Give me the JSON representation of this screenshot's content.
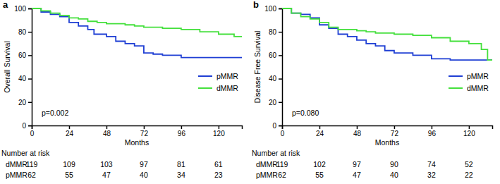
{
  "chart_data": [
    {
      "type": "line",
      "title": "a",
      "xlabel": "Months",
      "ylabel": "Overall Survival",
      "annotations": [
        "p=0.002"
      ],
      "xlim": [
        0,
        135
      ],
      "xticks": [
        0,
        24,
        48,
        72,
        96,
        120
      ],
      "ylim": [
        0,
        100
      ],
      "yticks": [
        0,
        20,
        40,
        60,
        80,
        100
      ],
      "legend": "lower right",
      "line_style": "step",
      "series": [
        {
          "name": "pMMR",
          "color": "#1f3fd4",
          "x": [
            0,
            6,
            12,
            18,
            24,
            30,
            36,
            40,
            48,
            54,
            60,
            66,
            72,
            78,
            84,
            96,
            135
          ],
          "values": [
            100,
            97,
            95,
            93,
            88,
            85,
            82,
            78,
            76,
            72,
            70,
            68,
            62,
            61,
            60,
            58,
            58
          ]
        },
        {
          "name": "dMMR",
          "color": "#44e03c",
          "x": [
            0,
            6,
            12,
            18,
            24,
            30,
            36,
            42,
            48,
            60,
            66,
            72,
            84,
            96,
            108,
            120,
            130,
            135
          ],
          "values": [
            100,
            98,
            96,
            94,
            92,
            91,
            89,
            88,
            87,
            86,
            85,
            84,
            83,
            82,
            80,
            78,
            76,
            76
          ]
        }
      ],
      "number_at_risk": {
        "title": "Number at risk",
        "x": [
          0,
          24,
          48,
          72,
          96,
          120
        ],
        "rows": [
          {
            "name": "dMMR",
            "values": [
              119,
              109,
              103,
              97,
              81,
              61
            ]
          },
          {
            "name": "pMMR",
            "values": [
              62,
              55,
              47,
              40,
              34,
              23
            ]
          }
        ]
      }
    },
    {
      "type": "line",
      "title": "b",
      "xlabel": "Months",
      "ylabel": "Disease Free Survival",
      "annotations": [
        "p=0.080"
      ],
      "xlim": [
        0,
        135
      ],
      "xticks": [
        0,
        24,
        48,
        72,
        96,
        120
      ],
      "ylim": [
        0,
        100
      ],
      "yticks": [
        0,
        20,
        40,
        60,
        80,
        100
      ],
      "legend": "lower right",
      "line_style": "step",
      "series": [
        {
          "name": "pMMR",
          "color": "#1f3fd4",
          "x": [
            0,
            6,
            12,
            18,
            24,
            30,
            36,
            42,
            48,
            54,
            60,
            66,
            72,
            84,
            96,
            108,
            135
          ],
          "values": [
            100,
            96,
            95,
            92,
            86,
            83,
            78,
            76,
            73,
            70,
            68,
            64,
            62,
            60,
            57,
            56,
            56
          ]
        },
        {
          "name": "dMMR",
          "color": "#44e03c",
          "x": [
            0,
            6,
            12,
            18,
            24,
            30,
            36,
            48,
            54,
            60,
            72,
            84,
            96,
            108,
            120,
            128,
            132,
            135
          ],
          "values": [
            100,
            96,
            93,
            91,
            88,
            84,
            82,
            81,
            80,
            79,
            78,
            77,
            75,
            72,
            70,
            65,
            56,
            56
          ]
        }
      ],
      "number_at_risk": {
        "title": "Number at risk",
        "x": [
          0,
          24,
          48,
          72,
          96,
          120
        ],
        "rows": [
          {
            "name": "dMMR",
            "values": [
              119,
              102,
              97,
              90,
              74,
              52
            ]
          },
          {
            "name": "pMMR",
            "values": [
              62,
              55,
              47,
              40,
              32,
              22
            ]
          }
        ]
      }
    }
  ]
}
